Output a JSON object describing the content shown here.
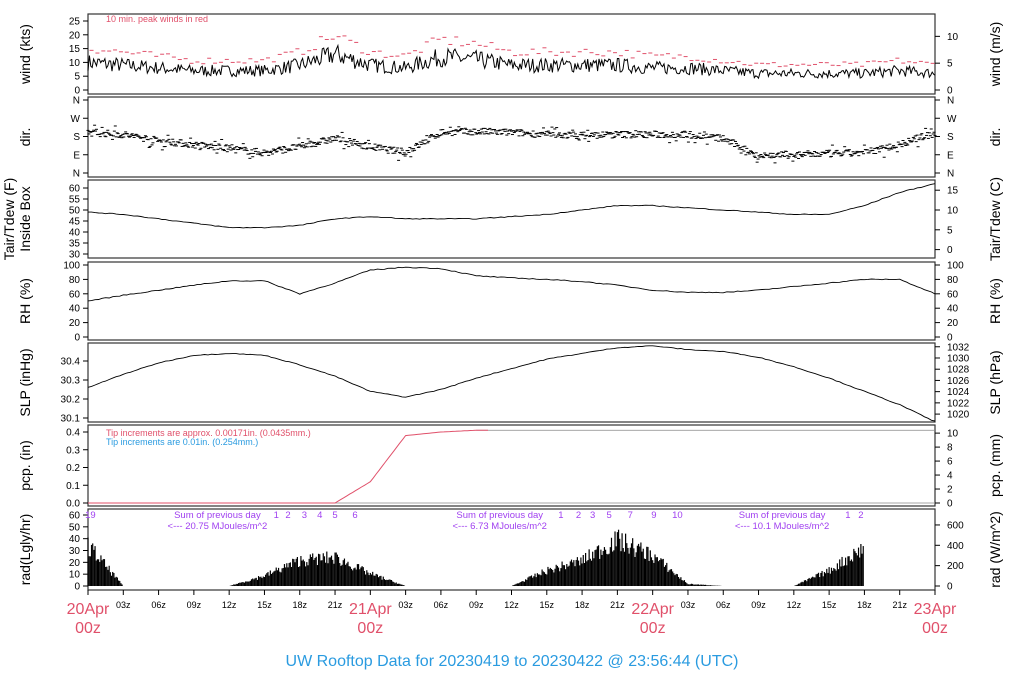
{
  "title": "UW Rooftop Data for 20230419  to  20230422 @ 23:56:44  (UTC)",
  "colors": {
    "title": "#2a9be0",
    "gust": "#e0506a",
    "precip_red": "#e0506a",
    "precip_blue": "#2a9be0",
    "annot": "#a040f0",
    "date": "#e0506a"
  },
  "chart_data": [
    {
      "type": "line",
      "name_left": "wind (kts)",
      "ylabel": "wind (kts)",
      "ylabel_right": "wind (m/s)",
      "ylim": [
        0,
        25
      ],
      "yticks": [
        "0",
        "5",
        "10",
        "15",
        "20",
        "25"
      ],
      "yticks_right": [
        "0",
        "5",
        "10"
      ],
      "annotation": "10 min. peak winds in red",
      "x_step_hours": 3,
      "values": [
        10,
        9,
        8,
        7,
        7,
        7,
        9,
        13,
        9,
        8,
        12,
        11,
        9,
        9,
        9,
        9,
        8,
        8,
        7,
        6,
        6,
        6,
        6,
        7,
        6
      ]
    },
    {
      "type": "scatter",
      "ylabel": "dir.",
      "ylabel_right": "dir.",
      "ylim": [
        0,
        360
      ],
      "yticks": [
        "N",
        "E",
        "S",
        "W",
        "N"
      ],
      "yticks_right": [
        "N",
        "E",
        "S",
        "W",
        "N"
      ],
      "x_step_hours": 3,
      "values": [
        200,
        190,
        160,
        140,
        120,
        100,
        130,
        170,
        130,
        100,
        200,
        205,
        200,
        190,
        185,
        190,
        190,
        190,
        170,
        85,
        90,
        95,
        100,
        140,
        200
      ]
    },
    {
      "type": "line",
      "ylabel": "Tair/Tdew (F)",
      "ylabel2": "Inside Box",
      "ylabel_right": "Tair/Tdew (C)",
      "ylim": [
        30,
        60
      ],
      "yticks": [
        "30",
        "35",
        "40",
        "45",
        "50",
        "55",
        "60"
      ],
      "yticks_right": [
        "0",
        "5",
        "10",
        "15"
      ],
      "x_step_hours": 3,
      "values": [
        49,
        48,
        46,
        44,
        42,
        42,
        43,
        46,
        47,
        46,
        46,
        46,
        47,
        48,
        50,
        52,
        52,
        51,
        50,
        49,
        48,
        48,
        52,
        58,
        62
      ]
    },
    {
      "type": "line",
      "ylabel": "RH (%)",
      "ylabel_right": "RH (%)",
      "ylim": [
        0,
        100
      ],
      "yticks": [
        "0",
        "20",
        "40",
        "60",
        "80",
        "100"
      ],
      "yticks_right": [
        "0",
        "20",
        "40",
        "60",
        "80",
        "100"
      ],
      "x_step_hours": 3,
      "values": [
        50,
        58,
        65,
        72,
        78,
        78,
        60,
        75,
        93,
        97,
        95,
        85,
        82,
        80,
        77,
        72,
        65,
        62,
        62,
        65,
        70,
        75,
        80,
        80,
        60
      ]
    },
    {
      "type": "line",
      "ylabel": "SLP (inHg)",
      "ylabel_right": "SLP (hPa)",
      "ylim": [
        30.1,
        30.4
      ],
      "yticks": [
        "30.1",
        "30.2",
        "30.3",
        "30.4"
      ],
      "yticks_right": [
        "1020",
        "1022",
        "1024",
        "1026",
        "1028",
        "1030",
        "1032"
      ],
      "x_step_hours": 3,
      "values": [
        30.26,
        30.33,
        30.39,
        30.43,
        30.44,
        30.43,
        30.38,
        30.32,
        30.24,
        30.21,
        30.25,
        30.31,
        30.36,
        30.41,
        30.44,
        30.47,
        30.48,
        30.46,
        30.45,
        30.42,
        30.37,
        30.31,
        30.24,
        30.17,
        30.08
      ]
    },
    {
      "type": "line",
      "ylabel": "pcp. (in)",
      "ylabel_right": "pcp. (mm)",
      "ylim": [
        0,
        0.4
      ],
      "yticks": [
        "0.0",
        "0.1",
        "0.2",
        "0.3",
        "0.4"
      ],
      "yticks_right": [
        "0",
        "2",
        "4",
        "6",
        "8",
        "10"
      ],
      "annotation_red": "Tip increments are approx. 0.00171in. (0.0435mm.)",
      "annotation_blue": "Tip increments are 0.01in. (0.254mm.)",
      "x_step_hours": 3,
      "values": [
        0,
        0,
        0,
        0,
        0,
        0,
        0,
        0,
        0.12,
        0.38,
        0.4,
        0.41,
        0.41,
        0.41,
        0.41,
        0.41,
        0.41,
        0.41,
        0.41,
        0.41,
        0.41,
        0.41,
        0.41,
        0.41,
        0.41
      ]
    },
    {
      "type": "area",
      "ylabel": "rad(Lgly/hr)",
      "ylabel_right": "rad (W/m^2)",
      "ylim": [
        0,
        60
      ],
      "yticks": [
        "0",
        "10",
        "20",
        "30",
        "40",
        "50",
        "60"
      ],
      "yticks_right": [
        "0",
        "200",
        "400",
        "600"
      ],
      "x_step_hours": 3,
      "values_wm2": [
        400,
        0,
        0,
        0,
        0,
        100,
        250,
        280,
        120,
        0,
        0,
        0,
        0,
        150,
        250,
        450,
        300,
        20,
        0,
        0,
        0,
        150,
        380,
        null,
        null
      ],
      "hour_labels": [
        {
          "text": "19",
          "hour": 0.2
        },
        {
          "text": "1",
          "hour": 16
        },
        {
          "text": "2",
          "hour": 17
        },
        {
          "text": "3",
          "hour": 18.4
        },
        {
          "text": "4",
          "hour": 19.7
        },
        {
          "text": "5",
          "hour": 21
        },
        {
          "text": "6",
          "hour": 22.7
        },
        {
          "text": "1",
          "hour": 40.2
        },
        {
          "text": "2",
          "hour": 41.7
        },
        {
          "text": "3",
          "hour": 42.9
        },
        {
          "text": "5",
          "hour": 44.3
        },
        {
          "text": "7",
          "hour": 46.1
        },
        {
          "text": "9",
          "hour": 48.1
        },
        {
          "text": "10",
          "hour": 50.1
        },
        {
          "text": "1",
          "hour": 64.6
        },
        {
          "text": "2",
          "hour": 65.7
        }
      ],
      "sums": [
        {
          "label": "Sum of previous day",
          "value": "<--- 20.75 MJoules/m^2",
          "hour": 10
        },
        {
          "label": "Sum of previous day",
          "value": "<--- 6.73 MJoules/m^2",
          "hour": 34
        },
        {
          "label": "Sum of previous day",
          "value": "<--- 10.1 MJoules/m^2",
          "hour": 58
        }
      ]
    }
  ],
  "x_axis": {
    "hour_labels": [
      "03z",
      "06z",
      "09z",
      "12z",
      "15z",
      "18z",
      "21z"
    ],
    "dates": [
      {
        "day": "20Apr",
        "hour": "00z"
      },
      {
        "day": "21Apr",
        "hour": "00z"
      },
      {
        "day": "22Apr",
        "hour": "00z"
      },
      {
        "day": "23Apr",
        "hour": "00z"
      }
    ]
  }
}
